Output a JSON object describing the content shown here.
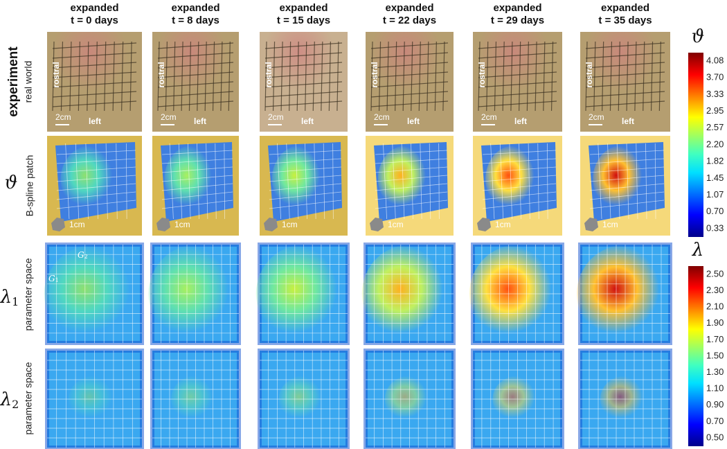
{
  "columns": [
    {
      "top": "expanded",
      "bottom": "t = 0 days"
    },
    {
      "top": "expanded",
      "bottom": "t = 8 days"
    },
    {
      "top": "expanded",
      "bottom": "t = 15 days"
    },
    {
      "top": "expanded",
      "bottom": "t = 22 days"
    },
    {
      "top": "expanded",
      "bottom": "t = 29 days"
    },
    {
      "top": "expanded",
      "bottom": "t = 35 days"
    }
  ],
  "rows": [
    {
      "title": "experiment",
      "subtitle": "real world"
    },
    {
      "symbol": "ϑ",
      "subtitle": "B-spline patch"
    },
    {
      "symbol": "λ",
      "subscript": "1",
      "subtitle": "parameter space"
    },
    {
      "symbol": "λ",
      "subscript": "2",
      "subtitle": "parameter space"
    }
  ],
  "photo_labels": {
    "rostral": "rostral",
    "scale": "2cm",
    "left": "left"
  },
  "patch_labels": {
    "scale": "1cm"
  },
  "param_labels": {
    "g1": "G",
    "g1_sub": "1",
    "g2": "G",
    "g2_sub": "2"
  },
  "colorbars": [
    {
      "symbol": "ϑ",
      "labels": [
        "4.08",
        "3.70",
        "3.33",
        "2.95",
        "2.57",
        "2.20",
        "1.82",
        "1.45",
        "1.07",
        "0.70",
        "0.33"
      ]
    },
    {
      "symbol": "λ",
      "labels": [
        "2.50",
        "2.30",
        "2.10",
        "1.90",
        "1.70",
        "1.50",
        "1.30",
        "1.10",
        "0.90",
        "0.70",
        "0.50"
      ]
    }
  ]
}
